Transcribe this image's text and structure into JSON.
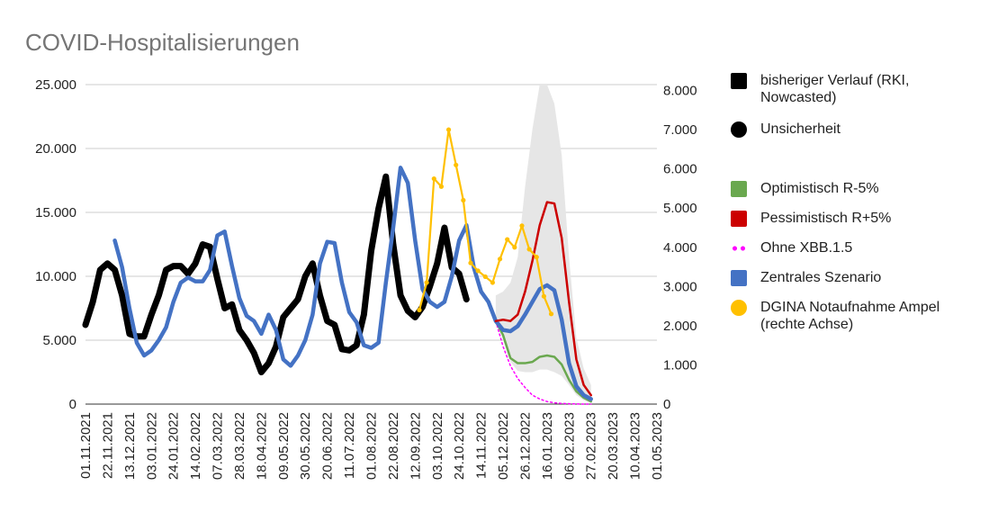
{
  "chart_data": {
    "type": "line",
    "title": "COVID-Hospitalisierungen",
    "y_left": {
      "ticks": [
        "0",
        "5.000",
        "10.000",
        "15.000",
        "20.000",
        "25.000"
      ],
      "range": [
        0,
        25000
      ]
    },
    "y_right": {
      "ticks": [
        "0",
        "1.000",
        "2.000",
        "3.000",
        "4.000",
        "5.000",
        "6.000",
        "7.000",
        "8.000"
      ],
      "range": [
        0,
        8150
      ]
    },
    "x_range_days": [
      0,
      546
    ],
    "x_ticks": [
      {
        "label": "01.11.2021",
        "day": 0
      },
      {
        "label": "22.11.2021",
        "day": 21
      },
      {
        "label": "13.12.2021",
        "day": 42
      },
      {
        "label": "03.01.2022",
        "day": 63
      },
      {
        "label": "24.01.2022",
        "day": 84
      },
      {
        "label": "14.02.2022",
        "day": 105
      },
      {
        "label": "07.03.2022",
        "day": 126
      },
      {
        "label": "28.03.2022",
        "day": 147
      },
      {
        "label": "18.04.2022",
        "day": 168
      },
      {
        "label": "09.05.2022",
        "day": 189
      },
      {
        "label": "30.05.2022",
        "day": 210
      },
      {
        "label": "20.06.2022",
        "day": 231
      },
      {
        "label": "11.07.2022",
        "day": 252
      },
      {
        "label": "01.08.2022",
        "day": 273
      },
      {
        "label": "22.08.2022",
        "day": 294
      },
      {
        "label": "12.09.2022",
        "day": 315
      },
      {
        "label": "03.10.2022",
        "day": 336
      },
      {
        "label": "24.10.2022",
        "day": 357
      },
      {
        "label": "14.11.2022",
        "day": 378
      },
      {
        "label": "05.12.2022",
        "day": 399
      },
      {
        "label": "26.12.2022",
        "day": 420
      },
      {
        "label": "16.01.2023",
        "day": 441
      },
      {
        "label": "06.02.2023",
        "day": 462
      },
      {
        "label": "27.02.2023",
        "day": 483
      },
      {
        "label": "20.03.2023",
        "day": 504
      },
      {
        "label": "10.04.2023",
        "day": 525
      },
      {
        "label": "01.05.2023",
        "day": 546
      }
    ],
    "legend": [
      {
        "key": "black",
        "label": "bisheriger Verlauf (RKI, Nowcasted)"
      },
      {
        "key": "circle",
        "label": "Unsicherheit"
      },
      {
        "key": "green",
        "label": "Optimistisch R-5%"
      },
      {
        "key": "red",
        "label": "Pessimistisch R+5%"
      },
      {
        "key": "dots",
        "label": "Ohne XBB.1.5"
      },
      {
        "key": "blue",
        "label": "Zentrales Szenario"
      },
      {
        "key": "orange",
        "label": "DGINA Notaufnahme Ampel (rechte Achse)"
      }
    ],
    "series": [
      {
        "name": "bisheriger Verlauf (RKI, Nowcasted)",
        "color": "#000000",
        "axis": "left",
        "points": [
          [
            0,
            6200
          ],
          [
            7,
            8000
          ],
          [
            14,
            10500
          ],
          [
            21,
            11000
          ],
          [
            28,
            10500
          ],
          [
            35,
            8500
          ],
          [
            42,
            5500
          ],
          [
            49,
            5300
          ],
          [
            56,
            5300
          ],
          [
            63,
            7000
          ],
          [
            70,
            8500
          ],
          [
            77,
            10500
          ],
          [
            84,
            10800
          ],
          [
            91,
            10800
          ],
          [
            98,
            10200
          ],
          [
            105,
            11000
          ],
          [
            112,
            12500
          ],
          [
            119,
            12300
          ],
          [
            126,
            9800
          ],
          [
            133,
            7500
          ],
          [
            140,
            7800
          ],
          [
            147,
            5800
          ],
          [
            154,
            5000
          ],
          [
            161,
            4000
          ],
          [
            168,
            2500
          ],
          [
            175,
            3200
          ],
          [
            182,
            4500
          ],
          [
            189,
            6800
          ],
          [
            196,
            7500
          ],
          [
            203,
            8200
          ],
          [
            210,
            10000
          ],
          [
            217,
            11000
          ],
          [
            224,
            8500
          ],
          [
            231,
            6500
          ],
          [
            238,
            6200
          ],
          [
            245,
            4300
          ],
          [
            252,
            4200
          ],
          [
            259,
            4600
          ],
          [
            266,
            7000
          ],
          [
            273,
            12000
          ],
          [
            280,
            15300
          ],
          [
            287,
            17800
          ],
          [
            294,
            12500
          ],
          [
            301,
            8500
          ],
          [
            308,
            7300
          ],
          [
            315,
            6800
          ],
          [
            322,
            7600
          ],
          [
            329,
            9200
          ],
          [
            336,
            11000
          ],
          [
            343,
            13800
          ],
          [
            350,
            10700
          ],
          [
            357,
            10200
          ],
          [
            364,
            8200
          ]
        ]
      },
      {
        "name": "Zentrales Szenario",
        "color": "#4472c4",
        "axis": "left",
        "points": [
          [
            28,
            12800
          ],
          [
            35,
            10700
          ],
          [
            42,
            7500
          ],
          [
            49,
            4800
          ],
          [
            56,
            3800
          ],
          [
            63,
            4200
          ],
          [
            70,
            5000
          ],
          [
            77,
            6000
          ],
          [
            84,
            8000
          ],
          [
            91,
            9500
          ],
          [
            98,
            9900
          ],
          [
            105,
            9600
          ],
          [
            112,
            9600
          ],
          [
            119,
            10500
          ],
          [
            126,
            13200
          ],
          [
            133,
            13500
          ],
          [
            140,
            10800
          ],
          [
            147,
            8300
          ],
          [
            154,
            6900
          ],
          [
            161,
            6500
          ],
          [
            168,
            5500
          ],
          [
            175,
            7000
          ],
          [
            182,
            5800
          ],
          [
            189,
            3500
          ],
          [
            196,
            3000
          ],
          [
            203,
            3800
          ],
          [
            210,
            5000
          ],
          [
            217,
            7000
          ],
          [
            224,
            11000
          ],
          [
            231,
            12700
          ],
          [
            238,
            12600
          ],
          [
            245,
            9500
          ],
          [
            252,
            7200
          ],
          [
            259,
            6400
          ],
          [
            266,
            4600
          ],
          [
            273,
            4400
          ],
          [
            280,
            4800
          ],
          [
            287,
            9500
          ],
          [
            294,
            13800
          ],
          [
            301,
            18500
          ],
          [
            308,
            17300
          ],
          [
            315,
            12800
          ],
          [
            322,
            9000
          ],
          [
            329,
            8000
          ],
          [
            336,
            7600
          ],
          [
            343,
            8000
          ],
          [
            350,
            10000
          ],
          [
            357,
            12800
          ],
          [
            364,
            14000
          ],
          [
            371,
            10700
          ],
          [
            378,
            8800
          ],
          [
            385,
            8000
          ],
          [
            392,
            6500
          ],
          [
            399,
            5800
          ],
          [
            406,
            5700
          ],
          [
            413,
            6100
          ],
          [
            420,
            7000
          ],
          [
            427,
            8000
          ],
          [
            434,
            9000
          ],
          [
            441,
            9300
          ],
          [
            448,
            8900
          ],
          [
            455,
            6600
          ],
          [
            462,
            3200
          ],
          [
            469,
            1400
          ],
          [
            476,
            700
          ],
          [
            483,
            400
          ]
        ]
      },
      {
        "name": "Optimistisch R-5%",
        "color": "#6aa84f",
        "axis": "left",
        "points": [
          [
            392,
            6500
          ],
          [
            399,
            5400
          ],
          [
            406,
            3600
          ],
          [
            413,
            3200
          ],
          [
            420,
            3200
          ],
          [
            427,
            3300
          ],
          [
            434,
            3700
          ],
          [
            441,
            3800
          ],
          [
            448,
            3700
          ],
          [
            455,
            3100
          ],
          [
            462,
            1900
          ],
          [
            469,
            1000
          ],
          [
            476,
            500
          ],
          [
            483,
            200
          ]
        ]
      },
      {
        "name": "Pessimistisch R+5%",
        "color": "#cc0000",
        "axis": "left",
        "points": [
          [
            392,
            6500
          ],
          [
            399,
            6600
          ],
          [
            406,
            6500
          ],
          [
            413,
            7000
          ],
          [
            420,
            8800
          ],
          [
            427,
            11200
          ],
          [
            434,
            14000
          ],
          [
            441,
            15800
          ],
          [
            448,
            15700
          ],
          [
            455,
            13000
          ],
          [
            462,
            8000
          ],
          [
            469,
            3500
          ],
          [
            476,
            1500
          ],
          [
            483,
            700
          ]
        ]
      },
      {
        "name": "Ohne XBB.1.5",
        "color": "#ff00ff",
        "axis": "left",
        "style": "dotted",
        "points": [
          [
            392,
            6500
          ],
          [
            399,
            4500
          ],
          [
            406,
            3000
          ],
          [
            413,
            2000
          ],
          [
            420,
            1300
          ],
          [
            427,
            700
          ],
          [
            434,
            400
          ],
          [
            441,
            200
          ],
          [
            448,
            100
          ],
          [
            455,
            50
          ],
          [
            462,
            30
          ],
          [
            469,
            10
          ],
          [
            476,
            0
          ],
          [
            483,
            0
          ]
        ]
      },
      {
        "name": "DGINA Notaufnahme Ampel (rechte Achse)",
        "color": "#ffc000",
        "axis": "right",
        "points": [
          [
            319,
            2400
          ],
          [
            326,
            3100
          ],
          [
            333,
            5750
          ],
          [
            340,
            5550
          ],
          [
            347,
            7000
          ],
          [
            354,
            6100
          ],
          [
            361,
            5200
          ],
          [
            368,
            3600
          ],
          [
            375,
            3400
          ],
          [
            382,
            3250
          ],
          [
            389,
            3100
          ],
          [
            396,
            3700
          ],
          [
            403,
            4200
          ],
          [
            410,
            4000
          ],
          [
            417,
            4550
          ],
          [
            424,
            3950
          ],
          [
            431,
            3750
          ],
          [
            438,
            2750
          ],
          [
            445,
            2300
          ]
        ]
      }
    ],
    "uncertainty_band": {
      "name": "Unsicherheit",
      "color": "#e6e6e6",
      "axis": "left",
      "upper": [
        [
          392,
          8500
        ],
        [
          399,
          8800
        ],
        [
          406,
          9500
        ],
        [
          413,
          11500
        ],
        [
          420,
          17000
        ],
        [
          427,
          21500
        ],
        [
          434,
          25000
        ],
        [
          441,
          25000
        ],
        [
          448,
          23500
        ],
        [
          455,
          19500
        ],
        [
          462,
          11500
        ],
        [
          469,
          5200
        ],
        [
          476,
          2800
        ],
        [
          483,
          1500
        ]
      ],
      "lower": [
        [
          392,
          6500
        ],
        [
          399,
          5000
        ],
        [
          406,
          3300
        ],
        [
          413,
          2600
        ],
        [
          420,
          2500
        ],
        [
          427,
          2500
        ],
        [
          434,
          2700
        ],
        [
          441,
          2700
        ],
        [
          448,
          2500
        ],
        [
          455,
          2200
        ],
        [
          462,
          1500
        ],
        [
          469,
          700
        ],
        [
          476,
          300
        ],
        [
          483,
          100
        ]
      ]
    }
  }
}
